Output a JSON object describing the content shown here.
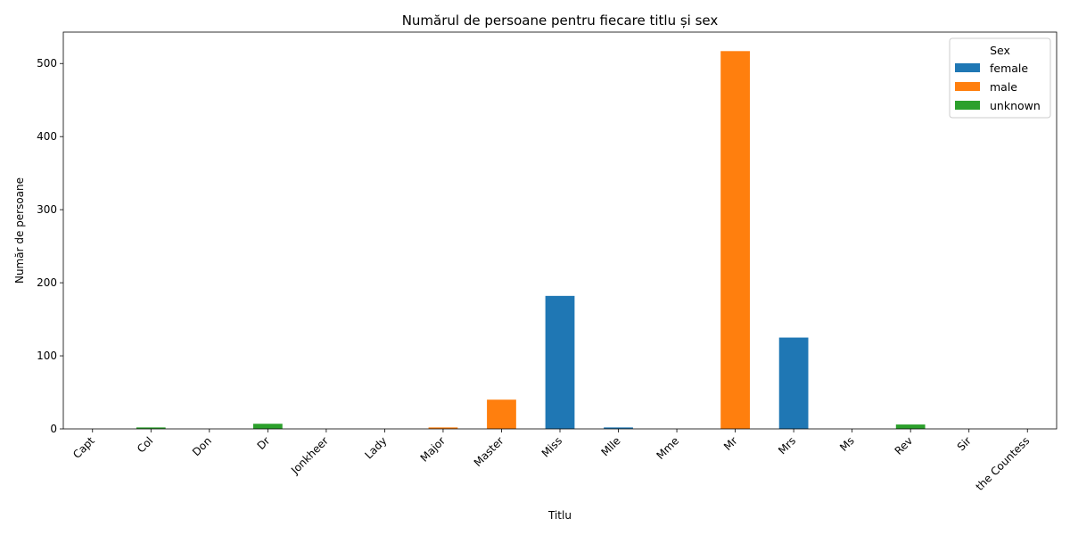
{
  "chart_data": {
    "type": "bar",
    "stacked": true,
    "title": "Numărul de persoane pentru fiecare titlu și sex",
    "xlabel": "Titlu",
    "ylabel": "Număr de persoane",
    "ylim": [
      0,
      543
    ],
    "yticks": [
      0,
      100,
      200,
      300,
      400,
      500
    ],
    "grid": false,
    "legend": {
      "title": "Sex",
      "placement": "top-right"
    },
    "categories": [
      "Capt",
      "Col",
      "Don",
      "Dr",
      "Jonkheer",
      "Lady",
      "Major",
      "Master",
      "Miss",
      "Mlle",
      "Mme",
      "Mr",
      "Mrs",
      "Ms",
      "Rev",
      "Sir",
      "the Countess"
    ],
    "series": [
      {
        "name": "female",
        "color": "#1f77b4",
        "values": [
          0,
          0,
          0,
          0,
          0,
          0,
          0,
          0,
          182,
          2,
          0,
          0,
          125,
          0,
          0,
          0,
          0
        ]
      },
      {
        "name": "male",
        "color": "#ff7f0e",
        "values": [
          0,
          0,
          0,
          0,
          0,
          0,
          2,
          40,
          0,
          0,
          0,
          517,
          0,
          0,
          0,
          0,
          0
        ]
      },
      {
        "name": "unknown",
        "color": "#2ca02c",
        "values": [
          0,
          2,
          0,
          7,
          0,
          0,
          0,
          0,
          0,
          0,
          0,
          0,
          0,
          0,
          6,
          0,
          0
        ]
      }
    ]
  }
}
